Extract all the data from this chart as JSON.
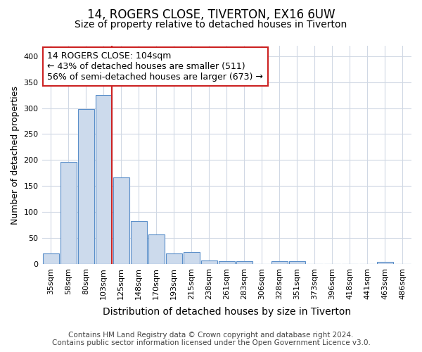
{
  "title1": "14, ROGERS CLOSE, TIVERTON, EX16 6UW",
  "title2": "Size of property relative to detached houses in Tiverton",
  "xlabel": "Distribution of detached houses by size in Tiverton",
  "ylabel": "Number of detached properties",
  "categories": [
    "35sqm",
    "58sqm",
    "80sqm",
    "103sqm",
    "125sqm",
    "148sqm",
    "170sqm",
    "193sqm",
    "215sqm",
    "238sqm",
    "261sqm",
    "283sqm",
    "306sqm",
    "328sqm",
    "351sqm",
    "373sqm",
    "396sqm",
    "418sqm",
    "441sqm",
    "463sqm",
    "486sqm"
  ],
  "values": [
    21,
    197,
    298,
    325,
    166,
    82,
    57,
    21,
    23,
    7,
    6,
    6,
    0,
    5,
    5,
    0,
    0,
    0,
    0,
    4,
    0
  ],
  "bar_color": "#ccdaec",
  "bar_edge_color": "#5b8fc9",
  "red_line_bar_index": 3,
  "annotation_text": "14 ROGERS CLOSE: 104sqm\n← 43% of detached houses are smaller (511)\n56% of semi-detached houses are larger (673) →",
  "annotation_box_color": "white",
  "annotation_box_edge_color": "#cc2222",
  "red_line_color": "#cc2222",
  "footer1": "Contains HM Land Registry data © Crown copyright and database right 2024.",
  "footer2": "Contains public sector information licensed under the Open Government Licence v3.0.",
  "ylim": [
    0,
    420
  ],
  "yticks": [
    0,
    50,
    100,
    150,
    200,
    250,
    300,
    350,
    400
  ],
  "background_color": "#ffffff",
  "grid_color": "#d0d8e4",
  "title1_fontsize": 12,
  "title2_fontsize": 10,
  "xlabel_fontsize": 10,
  "ylabel_fontsize": 9,
  "tick_fontsize": 8,
  "annotation_fontsize": 9,
  "footer_fontsize": 7.5
}
